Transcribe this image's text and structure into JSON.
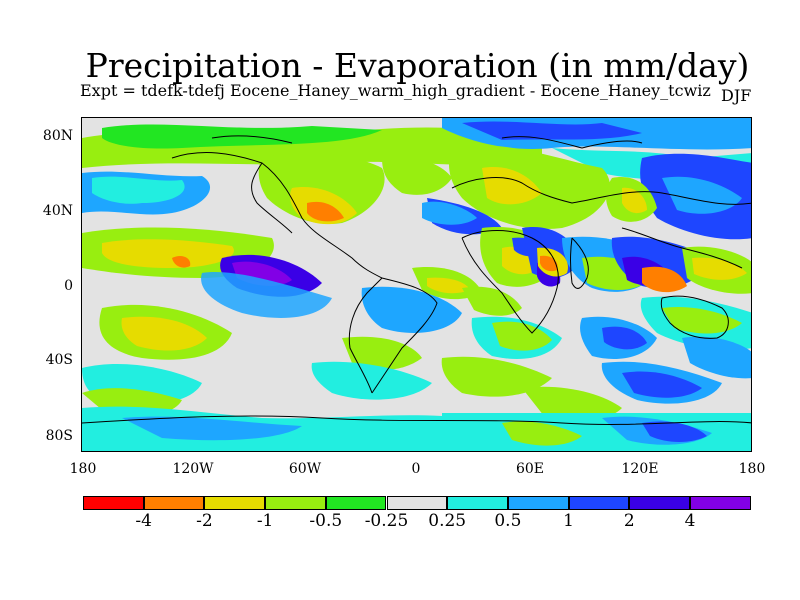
{
  "title": "Precipitation - Evaporation (in mm/day)",
  "subtitle": "Expt = tdefk-tdefj Eocene_Haney_warm_high_gradient - Eocene_Haney_tcwiz",
  "season": "DJF",
  "map": {
    "lat_labels": [
      "80N",
      "40N",
      "0",
      "40S",
      "80S"
    ],
    "lon_labels": [
      "180",
      "120W",
      "60W",
      "0",
      "60E",
      "120E",
      "180"
    ],
    "lat_range": [
      -90,
      90
    ],
    "lon_range": [
      -180,
      180
    ]
  },
  "colorbar": {
    "levels": [
      "-4",
      "-2",
      "-1",
      "-0.5",
      "-0.25",
      "0.25",
      "0.5",
      "1",
      "2",
      "4"
    ],
    "colors": [
      "#ff0000",
      "#ff7f00",
      "#e6dc00",
      "#98ee10",
      "#22e622",
      "#e3e3e3",
      "#22eee0",
      "#1ea6ff",
      "#1e46ff",
      "#3a00e6",
      "#8200e6"
    ]
  }
}
